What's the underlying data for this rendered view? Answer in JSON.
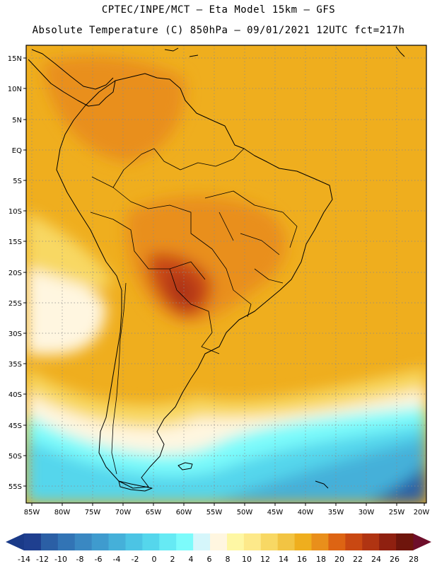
{
  "header": {
    "line1": "CPTEC/INPE/MCT –  Eta Model 15km – GFS",
    "line2": "Absolute Temperature (C) 850hPa – 09/01/2021 12UTC fct=217h"
  },
  "axes": {
    "lat_labels": [
      "15N",
      "10N",
      "5N",
      "EQ",
      "5S",
      "10S",
      "15S",
      "20S",
      "25S",
      "30S",
      "35S",
      "40S",
      "45S",
      "50S",
      "55S"
    ],
    "lon_labels": [
      "85W",
      "80W",
      "75W",
      "70W",
      "65W",
      "60W",
      "55W",
      "50W",
      "45W",
      "40W",
      "35W",
      "30W",
      "25W",
      "20W"
    ],
    "lat_range": [
      -58,
      16
    ],
    "lon_range": [
      -86,
      -20
    ]
  },
  "colorbar": {
    "ticks": [
      "-14",
      "-12",
      "-10",
      "-8",
      "-6",
      "-4",
      "-2",
      "0",
      "2",
      "4",
      "6",
      "8",
      "10",
      "12",
      "14",
      "16",
      "18",
      "20",
      "22",
      "24",
      "26",
      "28"
    ],
    "colors": [
      "#1f3f8f",
      "#2b5fa5",
      "#3274b5",
      "#3a88c2",
      "#3f9bce",
      "#45b0d9",
      "#4cc4e4",
      "#55d6ec",
      "#66eaf4",
      "#7cfbfb",
      "#d5f6fb",
      "#fff6e0",
      "#fef7a4",
      "#fde98a",
      "#f8d864",
      "#f2c443",
      "#efae1e",
      "#e98f1b",
      "#dd6413",
      "#c94812",
      "#b03412",
      "#8f2010",
      "#6e150c"
    ],
    "low_arrow_color": "#1a3a88",
    "high_arrow_color": "#6e0e2a"
  }
}
